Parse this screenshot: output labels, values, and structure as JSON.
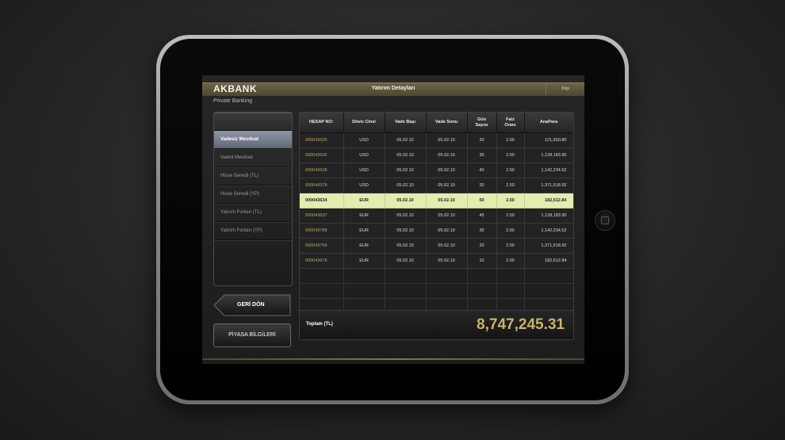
{
  "brand": {
    "name": "AKBANK",
    "subtitle": "Private Banking"
  },
  "header": {
    "title": "Yatırım Detayları",
    "info_label": "Bilgi"
  },
  "menu": {
    "items": [
      {
        "label": "Vadesiz Mevduat",
        "active": true
      },
      {
        "label": "Vadeli Mevduat",
        "active": false
      },
      {
        "label": "Hisse Senedi (TL)",
        "active": false
      },
      {
        "label": "Hisse Senedi (YP)",
        "active": false
      },
      {
        "label": "Yatırım Fonları (TL)",
        "active": false
      },
      {
        "label": "Yatırım Fonları (YP)",
        "active": false
      }
    ]
  },
  "buttons": {
    "back": "GERİ DÖN",
    "market": "PİYASA BİLGİLERİ"
  },
  "table": {
    "columns": [
      "HESAP NO:",
      "Döviz Cinsi",
      "Vade Başı",
      "Vade Sonu",
      "Gün Sayısı",
      "Faiz Oranı",
      "AnaPara"
    ],
    "rows": [
      [
        "000043635",
        "USD",
        "05.02.10",
        "05.02.10",
        "20",
        "2.50",
        "121,650.80"
      ],
      [
        "000043636",
        "USD",
        "05.02.10",
        "05.02.10",
        "30",
        "2.50",
        "1,128,183.90"
      ],
      [
        "000043638",
        "USD",
        "05.02.10",
        "05.02.10",
        "40",
        "2.50",
        "1,142,234.52"
      ],
      [
        "000044378",
        "USD",
        "05.02.10",
        "05.02.10",
        "20",
        "2.50",
        "1,371,518.92"
      ],
      [
        "000043634",
        "EUR",
        "05.02.10",
        "05.02.10",
        "50",
        "2.50",
        "182,512.84"
      ],
      [
        "000043637",
        "EUR",
        "05.02.10",
        "05.02.10",
        "45",
        "2.50",
        "1,128,183.90"
      ],
      [
        "000043789",
        "EUR",
        "05.02.10",
        "05.02.10",
        "30",
        "2.50",
        "1,142,234.52"
      ],
      [
        "000043799",
        "EUR",
        "05.02.10",
        "05.02.10",
        "20",
        "2.50",
        "1,371,518.92"
      ],
      [
        "000043678",
        "EUR",
        "05.02.10",
        "05.02.10",
        "10",
        "2.50",
        "182,512.84"
      ]
    ],
    "selected_row": 4,
    "total_label": "Toplam (TL)",
    "total_value": "8,747,245.31"
  },
  "colors": {
    "accent_gold": "#c9b469",
    "selected_row": "#e4ecaf",
    "active_menu": "#7a8190"
  }
}
